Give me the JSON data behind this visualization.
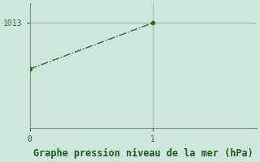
{
  "x": [
    0,
    1
  ],
  "y": [
    1009.5,
    1013.0
  ],
  "line_color": "#2d6a2d",
  "marker": "o",
  "marker_size": 3,
  "bg_color": "#cce8dc",
  "plot_bg_color": "#cce8dc",
  "xlabel": "Graphe pression niveau de la mer (hPa)",
  "xlabel_color": "#1a5c1a",
  "xlabel_fontsize": 8.5,
  "ytick_labels": [
    "1013"
  ],
  "ytick_values": [
    1013.0
  ],
  "xtick_values": [
    0,
    1
  ],
  "xtick_labels": [
    "0",
    "1"
  ],
  "ylim": [
    1005.0,
    1014.5
  ],
  "xlim": [
    0,
    1.85
  ],
  "tick_color": "#2d6a2d",
  "tick_fontsize": 7,
  "grid_color": "#a0b8a8",
  "line_width": 1.0,
  "line_style": "-.",
  "spine_color": "#888888"
}
